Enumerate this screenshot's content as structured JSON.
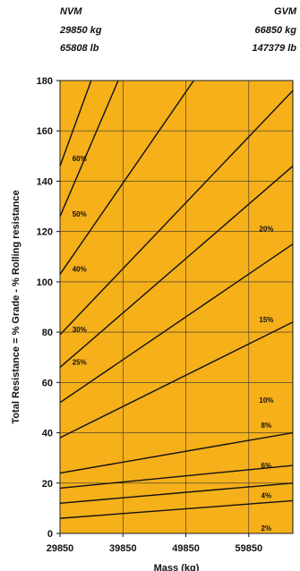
{
  "header": {
    "left": [
      "NVM",
      "29850 kg",
      "65808 lb"
    ],
    "right": [
      "GVM",
      "66850 kg",
      "147379 lb"
    ]
  },
  "chart_data": {
    "type": "line",
    "xlabel": "Mass (kg)",
    "ylabel": "Total Resistance = % Grade - % Rolling resistance",
    "x_ticks": [
      29850,
      39850,
      49850,
      59850
    ],
    "y_ticks": [
      0,
      20,
      40,
      60,
      80,
      100,
      120,
      140,
      160,
      180
    ],
    "xlim": [
      29850,
      66850
    ],
    "ylim": [
      0,
      180
    ],
    "background_color": "#F5B01A",
    "line_color": "#111111",
    "grid": true,
    "series": [
      {
        "name": "2%",
        "values": [
          [
            29850,
            6
          ],
          [
            66850,
            13
          ]
        ]
      },
      {
        "name": "4%",
        "values": [
          [
            29850,
            12
          ],
          [
            66850,
            20
          ]
        ]
      },
      {
        "name": "6%",
        "values": [
          [
            29850,
            18
          ],
          [
            66850,
            27
          ]
        ]
      },
      {
        "name": "8%",
        "values": [
          [
            29850,
            24
          ],
          [
            66850,
            40
          ]
        ]
      },
      {
        "name": "10%",
        "values": [
          [
            29850,
            38
          ],
          [
            66850,
            84
          ]
        ]
      },
      {
        "name": "15%",
        "values": [
          [
            29850,
            52
          ],
          [
            66850,
            115
          ]
        ]
      },
      {
        "name": "20%",
        "values": [
          [
            29850,
            66
          ],
          [
            66850,
            146
          ]
        ]
      },
      {
        "name": "25%",
        "values": [
          [
            29850,
            79
          ],
          [
            66850,
            176
          ]
        ]
      },
      {
        "name": "30%",
        "values": [
          [
            29850,
            103
          ],
          [
            51100,
            180
          ]
        ]
      },
      {
        "name": "40%",
        "values": [
          [
            29850,
            126
          ],
          [
            39100,
            180
          ]
        ]
      },
      {
        "name": "50%",
        "values": [
          [
            29850,
            146
          ],
          [
            34800,
            180
          ]
        ]
      },
      {
        "name": "60%",
        "values": [
          [
            29850,
            0
          ],
          [
            66850,
            0
          ]
        ]
      }
    ],
    "line_labels": [
      {
        "text": "60%",
        "x": 31800,
        "y": 148
      },
      {
        "text": "50%",
        "x": 31800,
        "y": 126
      },
      {
        "text": "40%",
        "x": 31800,
        "y": 104
      },
      {
        "text": "30%",
        "x": 31800,
        "y": 80
      },
      {
        "text": "25%",
        "x": 31800,
        "y": 67
      },
      {
        "text": "20%",
        "x": 61500,
        "y": 120
      },
      {
        "text": "15%",
        "x": 61500,
        "y": 84
      },
      {
        "text": "10%",
        "x": 61500,
        "y": 52
      },
      {
        "text": "8%",
        "x": 61800,
        "y": 42
      },
      {
        "text": "6%",
        "x": 61800,
        "y": 26
      },
      {
        "text": "4%",
        "x": 61800,
        "y": 14
      },
      {
        "text": "2%",
        "x": 61800,
        "y": 1
      }
    ]
  }
}
